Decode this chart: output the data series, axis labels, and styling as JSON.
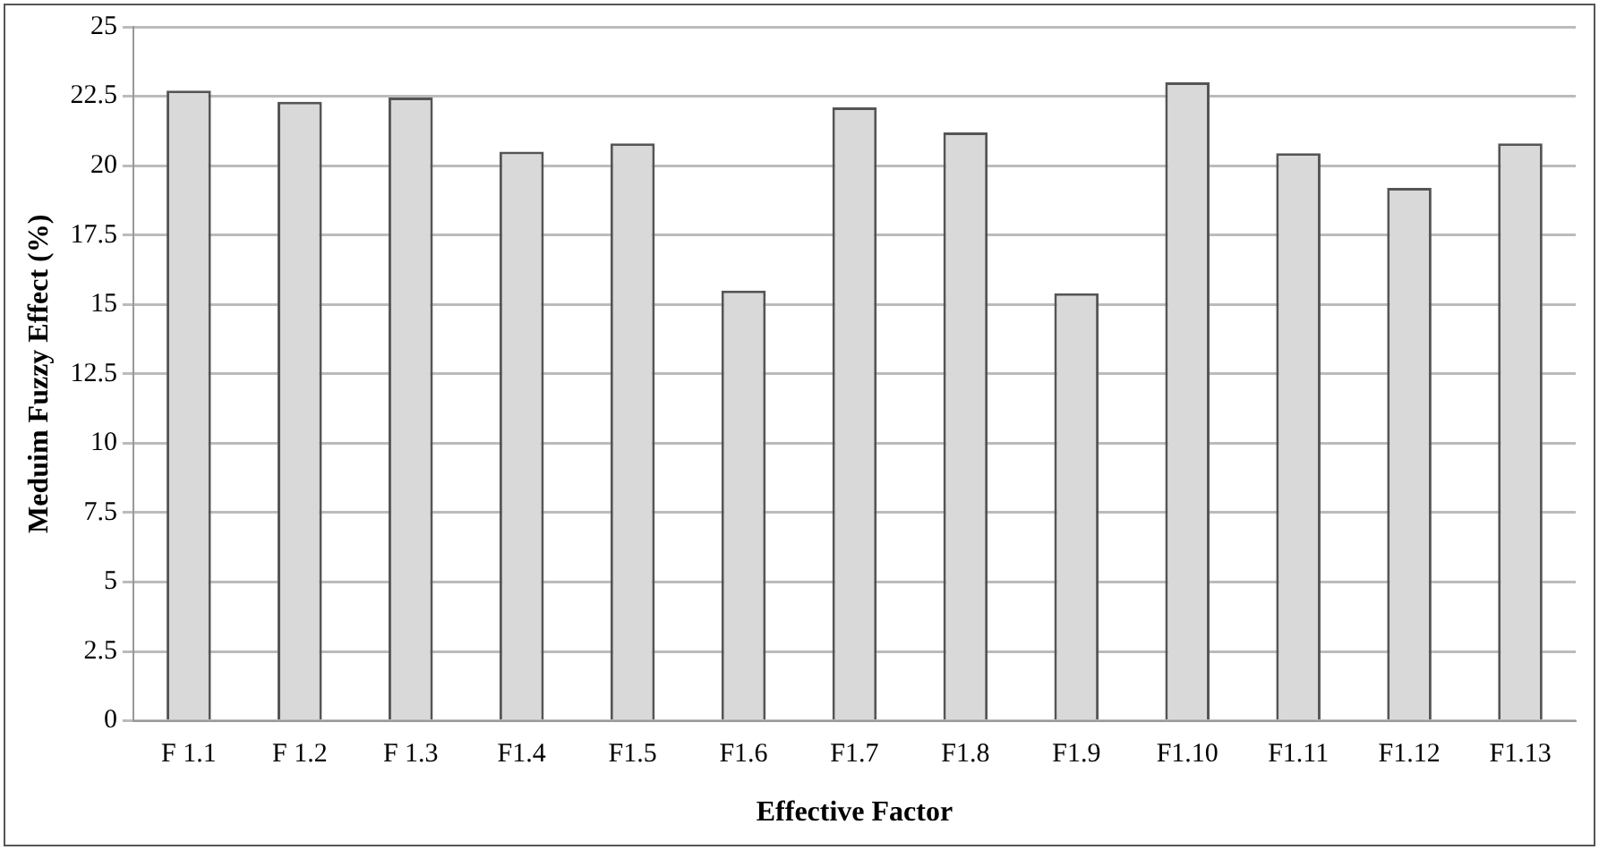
{
  "chart_data": {
    "type": "bar",
    "xlabel": "Effective Factor",
    "ylabel": "Meduim Fuzzy Effect (%)",
    "categories": [
      "F 1.1",
      "F 1.2",
      "F 1.3",
      "F1.4",
      "F1.5",
      "F1.6",
      "F1.7",
      "F1.8",
      "F1.9",
      "F1.10",
      "F1.11",
      "F1.12",
      "F1.13"
    ],
    "values": [
      22.7,
      22.3,
      22.45,
      20.5,
      20.8,
      15.5,
      22.1,
      21.2,
      15.4,
      23.0,
      20.45,
      19.2,
      20.8
    ],
    "color": "#d9d9d9",
    "ylim": [
      0,
      25
    ],
    "yticks": [
      0,
      2.5,
      5,
      7.5,
      10,
      12.5,
      15,
      17.5,
      20,
      22.5,
      25
    ],
    "grid": "y"
  }
}
